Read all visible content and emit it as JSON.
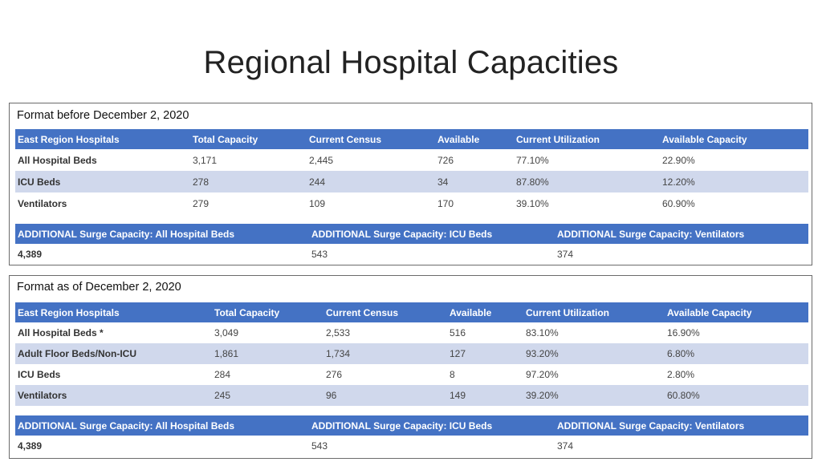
{
  "title": "Regional Hospital Capacities",
  "before": {
    "caption": "Format before December 2, 2020",
    "headers": [
      "East Region Hospitals",
      "Total Capacity",
      "Current Census",
      "Available",
      "Current Utilization",
      "Available Capacity"
    ],
    "rows": [
      [
        "All Hospital Beds",
        "3,171",
        "2,445",
        "726",
        "77.10%",
        "22.90%"
      ],
      [
        "ICU Beds",
        "278",
        "244",
        "34",
        "87.80%",
        "12.20%"
      ],
      [
        "Ventilators",
        "279",
        "109",
        "170",
        "39.10%",
        "60.90%"
      ]
    ],
    "surge_headers": [
      "ADDITIONAL Surge Capacity: All Hospital Beds",
      "ADDITIONAL Surge Capacity: ICU Beds",
      "ADDITIONAL Surge Capacity: Ventilators"
    ],
    "surge_values": [
      "4,389",
      "543",
      "374"
    ]
  },
  "after": {
    "caption": "Format as of December 2, 2020",
    "headers": [
      "East Region Hospitals",
      "Total Capacity",
      "Current Census",
      "Available",
      "Current Utilization",
      "Available Capacity"
    ],
    "rows": [
      [
        "All Hospital Beds *",
        "3,049",
        "2,533",
        "516",
        "83.10%",
        "16.90%"
      ],
      [
        "Adult Floor Beds/Non-ICU",
        "1,861",
        "1,734",
        "127",
        "93.20%",
        "6.80%"
      ],
      [
        "ICU Beds",
        "284",
        "276",
        "8",
        "97.20%",
        "2.80%"
      ],
      [
        "Ventilators",
        "245",
        "96",
        "149",
        "39.20%",
        "60.80%"
      ]
    ],
    "surge_headers": [
      "ADDITIONAL Surge Capacity: All Hospital Beds",
      "ADDITIONAL Surge Capacity: ICU Beds",
      "ADDITIONAL Surge Capacity: Ventilators"
    ],
    "surge_values": [
      "4,389",
      "543",
      "374"
    ]
  },
  "colors": {
    "header_bg": "#4472c4",
    "alt_row_bg": "#d0d8ec"
  }
}
